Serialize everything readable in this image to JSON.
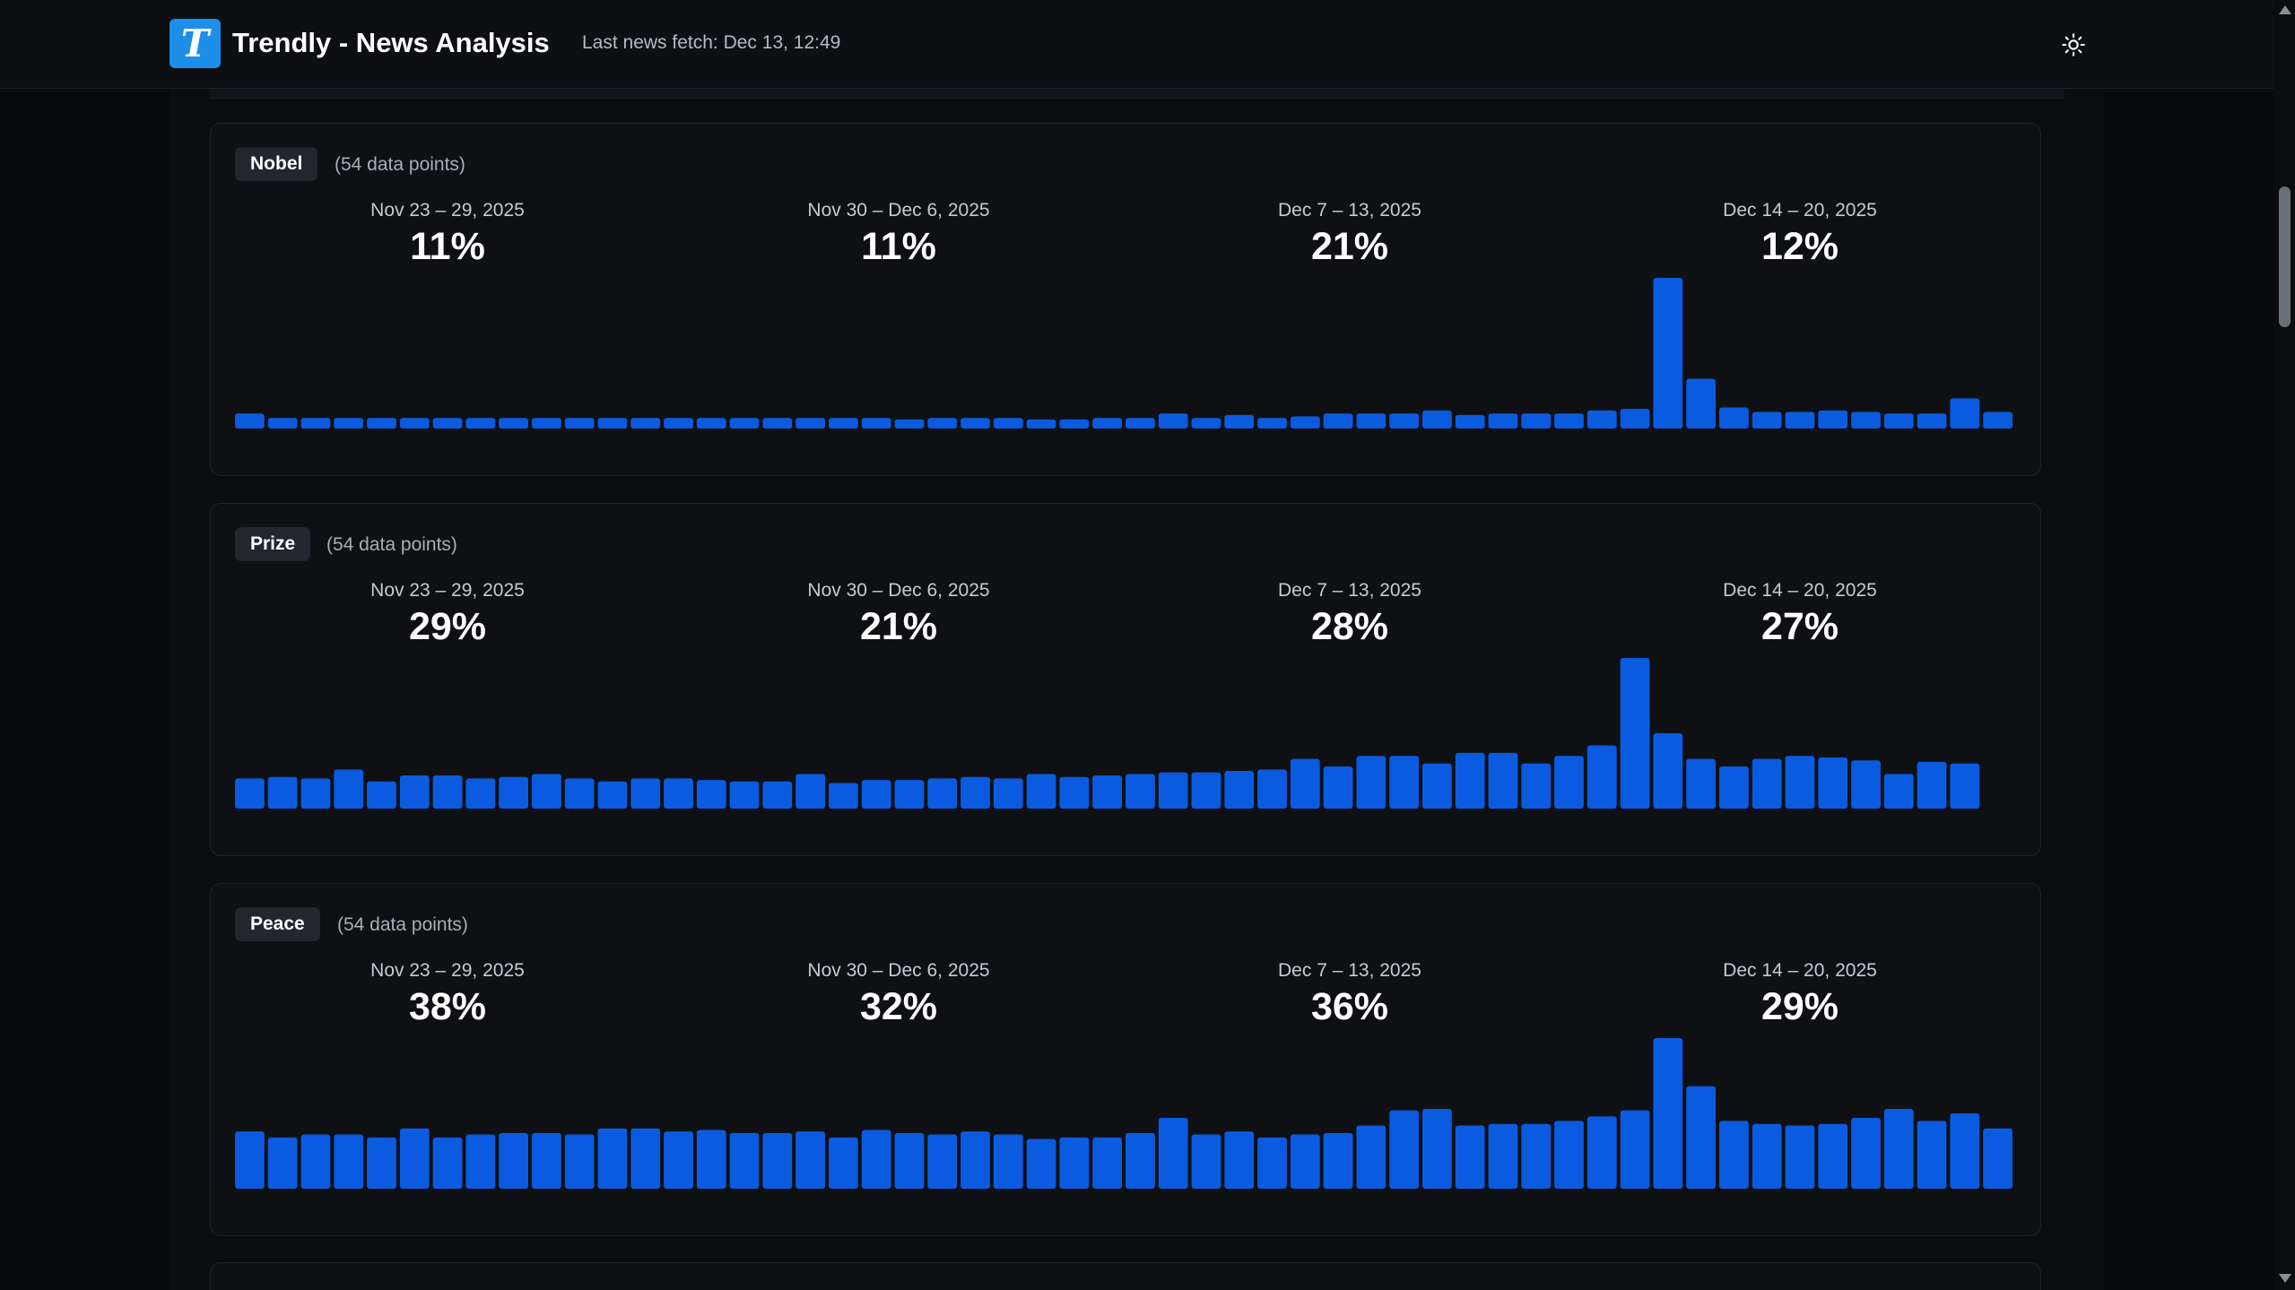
{
  "header": {
    "logo_letter": "T",
    "title": "Trendly - News Analysis",
    "last_fetch": "Last news fetch: Dec 13, 12:49",
    "theme_toggle_icon": "sun-icon"
  },
  "colors": {
    "accent": "#1d8fe8",
    "bar": "#0b5be0",
    "background": "#07090d"
  },
  "topics": [
    {
      "name": "Nobel",
      "points_label": "(54 data points)",
      "weeks": [
        {
          "range": "Nov 23 – 29, 2025",
          "pct": "11%"
        },
        {
          "range": "Nov 30 – Dec 6, 2025",
          "pct": "11%"
        },
        {
          "range": "Dec 7 – 13, 2025",
          "pct": "21%"
        },
        {
          "range": "Dec 14 – 20, 2025",
          "pct": "12%"
        }
      ]
    },
    {
      "name": "Prize",
      "points_label": "(54 data points)",
      "weeks": [
        {
          "range": "Nov 23 – 29, 2025",
          "pct": "29%"
        },
        {
          "range": "Nov 30 – Dec 6, 2025",
          "pct": "21%"
        },
        {
          "range": "Dec 7 – 13, 2025",
          "pct": "28%"
        },
        {
          "range": "Dec 14 – 20, 2025",
          "pct": "27%"
        }
      ]
    },
    {
      "name": "Peace",
      "points_label": "(54 data points)",
      "weeks": [
        {
          "range": "Nov 23 – 29, 2025",
          "pct": "38%"
        },
        {
          "range": "Nov 30 – Dec 6, 2025",
          "pct": "32%"
        },
        {
          "range": "Dec 7 – 13, 2025",
          "pct": "36%"
        },
        {
          "range": "Dec 14 – 20, 2025",
          "pct": "29%"
        }
      ]
    }
  ],
  "chart_data": [
    {
      "type": "bar",
      "title": "Nobel",
      "ylim": [
        0,
        100
      ],
      "values": [
        10,
        7,
        7,
        7,
        7,
        7,
        7,
        7,
        7,
        7,
        7,
        7,
        7,
        7,
        7,
        7,
        7,
        7,
        7,
        7,
        6,
        7,
        7,
        7,
        6,
        6,
        7,
        7,
        10,
        7,
        9,
        7,
        8,
        10,
        10,
        10,
        12,
        9,
        10,
        10,
        10,
        12,
        13,
        100,
        33,
        14,
        11,
        11,
        12,
        11,
        10,
        10,
        20,
        11
      ]
    },
    {
      "type": "bar",
      "title": "Prize",
      "ylim": [
        0,
        100
      ],
      "values": [
        20,
        21,
        20,
        26,
        18,
        22,
        22,
        20,
        21,
        23,
        20,
        18,
        20,
        20,
        19,
        18,
        18,
        23,
        17,
        19,
        19,
        20,
        21,
        20,
        23,
        21,
        22,
        23,
        24,
        24,
        25,
        26,
        33,
        28,
        35,
        35,
        30,
        37,
        37,
        30,
        35,
        42,
        100,
        50,
        33,
        28,
        33,
        35,
        34,
        32,
        23,
        31,
        30,
        null
      ]
    },
    {
      "type": "bar",
      "title": "Peace",
      "ylim": [
        0,
        100
      ],
      "values": [
        38,
        34,
        36,
        36,
        34,
        40,
        34,
        36,
        37,
        37,
        36,
        40,
        40,
        38,
        39,
        37,
        37,
        38,
        34,
        39,
        37,
        36,
        38,
        36,
        33,
        34,
        34,
        37,
        47,
        36,
        38,
        34,
        36,
        37,
        42,
        52,
        53,
        42,
        43,
        43,
        45,
        48,
        52,
        100,
        68,
        45,
        43,
        42,
        43,
        47,
        53,
        45,
        50,
        40
      ]
    }
  ]
}
